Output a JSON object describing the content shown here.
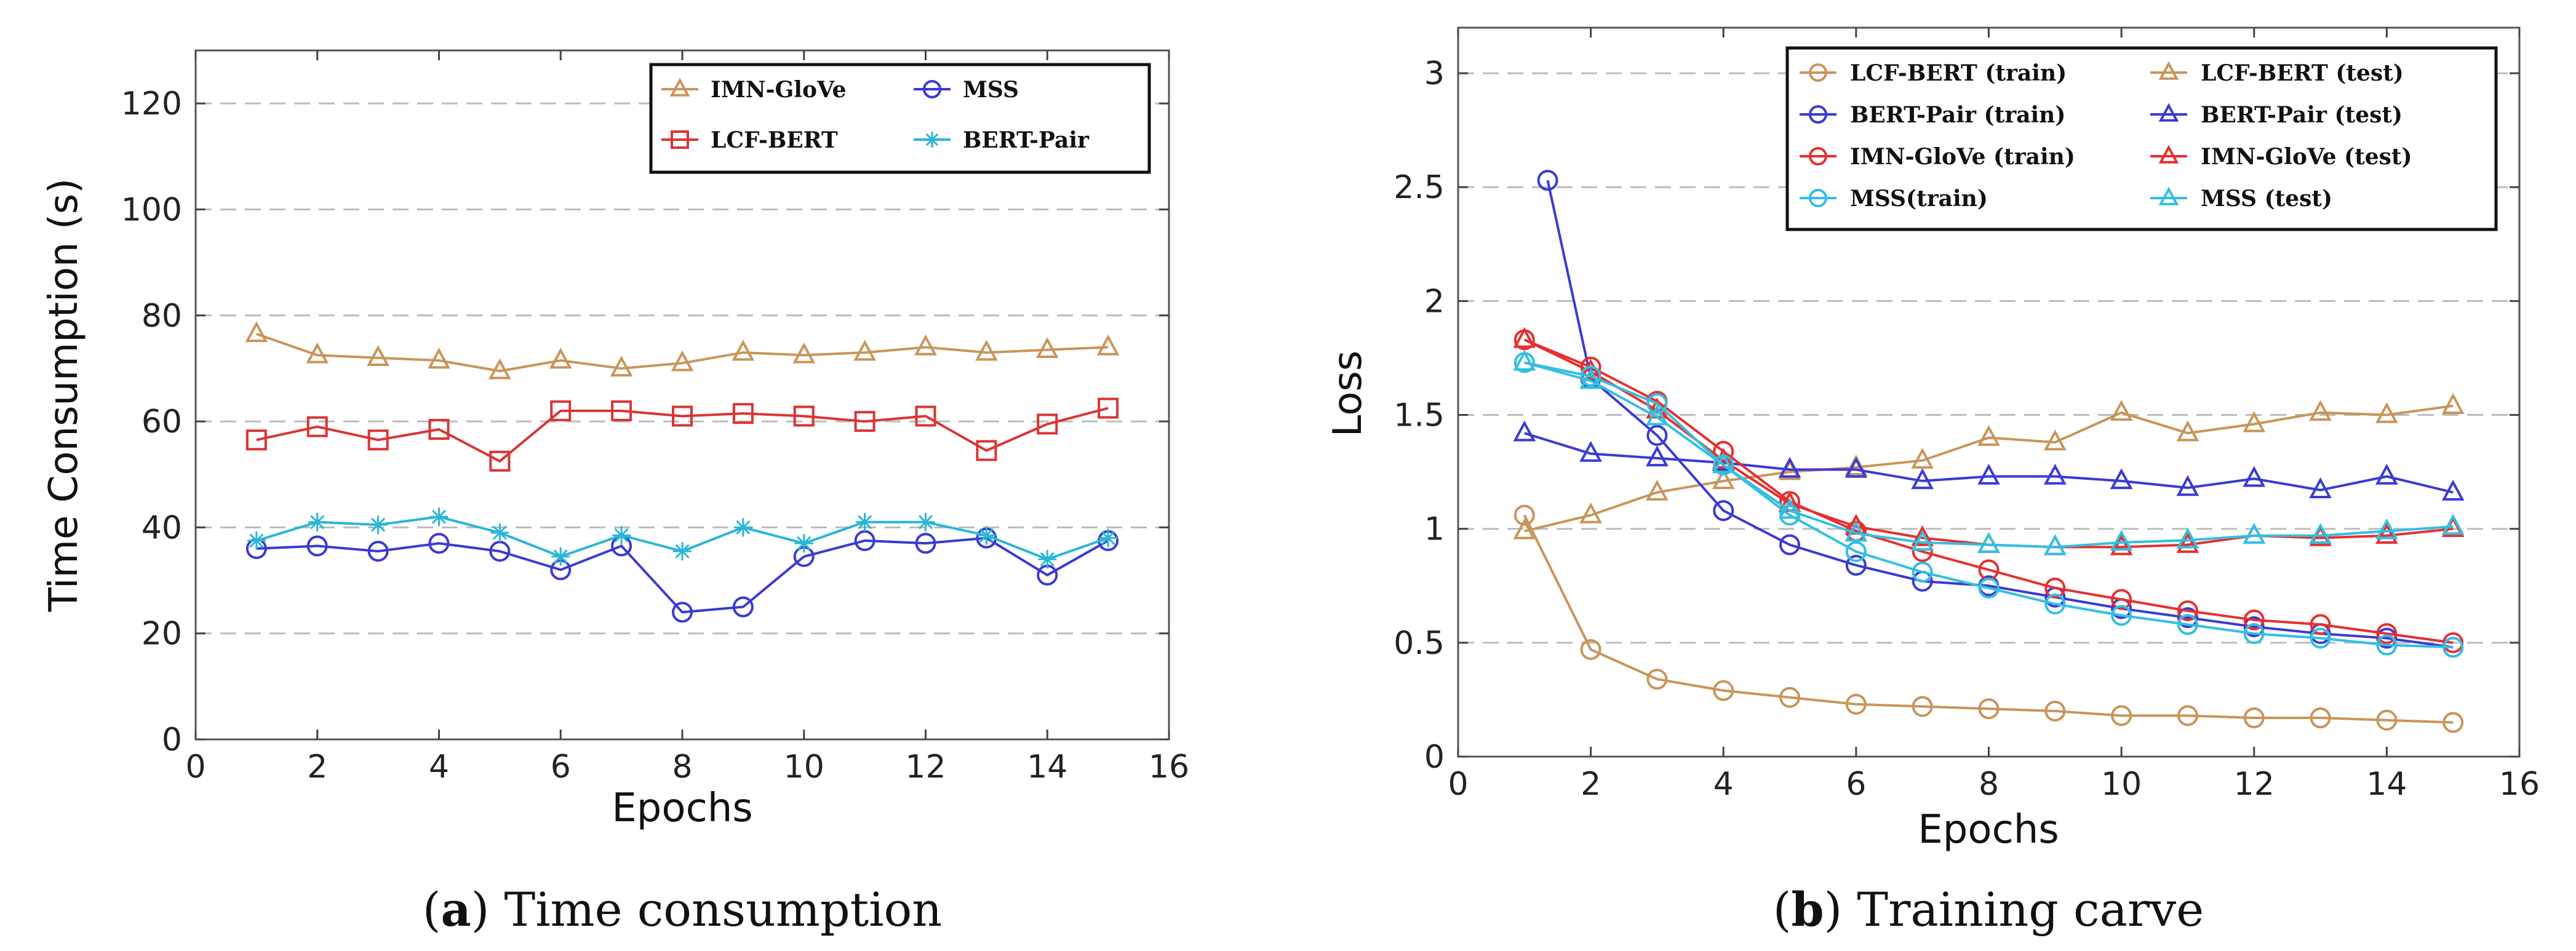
{
  "colors": {
    "IMN-GloVe": "#c8955a",
    "LCF-BERT": "#d93535",
    "LCF-BERT-train": "#c8955a",
    "MSS": "#3a3ad4",
    "BERT-Pair": "#2ab6d6",
    "BERT-Pair-train": "#3a3ad4",
    "IMN-GloVe-train": "#e53030",
    "MSS-train": "#33bfe0"
  },
  "chart_data": [
    {
      "type": "line",
      "caption_letter": "a",
      "caption_text": " Time consumption",
      "caption_open": "(",
      "caption_close": ")",
      "xlabel": "Epochs",
      "ylabel": "Time Consumption (s)",
      "xlim": [
        0,
        16
      ],
      "ylim": [
        0,
        130
      ],
      "xticks": [
        0,
        2,
        4,
        6,
        8,
        10,
        12,
        14,
        16
      ],
      "yticks": [
        0,
        20,
        40,
        60,
        80,
        100,
        120
      ],
      "grid": true,
      "legend_position": "top-right",
      "series": [
        {
          "name": "IMN-GloVe",
          "marker": "triangle",
          "color_key": "IMN-GloVe",
          "x": [
            1,
            2,
            3,
            4,
            5,
            6,
            7,
            8,
            9,
            10,
            11,
            12,
            13,
            14,
            15
          ],
          "y": [
            76.5,
            72.5,
            72,
            71.5,
            69.5,
            71.5,
            70,
            71,
            73,
            72.5,
            73,
            74,
            73,
            73.5,
            74
          ]
        },
        {
          "name": "MSS",
          "marker": "circle",
          "color_key": "MSS",
          "x": [
            1,
            2,
            3,
            4,
            5,
            6,
            7,
            8,
            9,
            10,
            11,
            12,
            13,
            14,
            15
          ],
          "y": [
            36,
            36.5,
            35.5,
            37,
            35.5,
            32,
            36.5,
            24,
            25,
            34.5,
            37.5,
            37,
            38,
            31,
            37.5
          ]
        },
        {
          "name": "LCF-BERT",
          "marker": "square",
          "color_key": "LCF-BERT",
          "x": [
            1,
            2,
            3,
            4,
            5,
            6,
            7,
            8,
            9,
            10,
            11,
            12,
            13,
            14,
            15
          ],
          "y": [
            56.5,
            59,
            56.5,
            58.5,
            52.5,
            62,
            62,
            61,
            61.5,
            61,
            60,
            61,
            54.5,
            59.5,
            62.5
          ]
        },
        {
          "name": "BERT-Pair",
          "marker": "star",
          "color_key": "BERT-Pair",
          "x": [
            1,
            2,
            3,
            4,
            5,
            6,
            7,
            8,
            9,
            10,
            11,
            12,
            13,
            14,
            15
          ],
          "y": [
            37.5,
            41,
            40.5,
            42,
            39,
            34.5,
            38.5,
            35.5,
            40,
            37,
            41,
            41,
            38.5,
            34,
            38
          ]
        }
      ]
    },
    {
      "type": "line",
      "caption_letter": "b",
      "caption_text": " Training carve",
      "caption_open": "(",
      "caption_close": ")",
      "xlabel": "Epochs",
      "ylabel": "Loss",
      "xlim": [
        0,
        16
      ],
      "ylim": [
        0,
        3.2
      ],
      "xticks": [
        0,
        2,
        4,
        6,
        8,
        10,
        12,
        14,
        16
      ],
      "yticks": [
        0,
        0.5,
        1,
        1.5,
        2,
        2.5,
        3
      ],
      "ytick_labels": [
        "0",
        "0.5",
        "1",
        "1.5",
        "2",
        "2.5",
        "3"
      ],
      "grid": true,
      "legend_position": "top-right",
      "series": [
        {
          "name": "LCF-BERT (train)",
          "marker": "circle",
          "color_key": "LCF-BERT-train",
          "x": [
            1,
            2,
            3,
            4,
            5,
            6,
            7,
            8,
            9,
            10,
            11,
            12,
            13,
            14,
            15
          ],
          "y": [
            1.06,
            0.47,
            0.34,
            0.29,
            0.26,
            0.23,
            0.22,
            0.21,
            0.2,
            0.18,
            0.18,
            0.17,
            0.17,
            0.16,
            0.15
          ]
        },
        {
          "name": "LCF-BERT (test)",
          "marker": "triangle",
          "color_key": "LCF-BERT-train",
          "x": [
            1,
            2,
            3,
            4,
            5,
            6,
            7,
            8,
            9,
            10,
            11,
            12,
            13,
            14,
            15
          ],
          "y": [
            0.99,
            1.06,
            1.16,
            1.21,
            1.25,
            1.27,
            1.3,
            1.4,
            1.38,
            1.51,
            1.42,
            1.46,
            1.51,
            1.5,
            1.54
          ]
        },
        {
          "name": "BERT-Pair (train)",
          "marker": "circle",
          "color_key": "BERT-Pair-train",
          "x": [
            1.35,
            2,
            3,
            4,
            5,
            6,
            7,
            8,
            9,
            10,
            11,
            12,
            13,
            14,
            15
          ],
          "y": [
            2.53,
            1.66,
            1.41,
            1.08,
            0.93,
            0.84,
            0.77,
            0.75,
            0.7,
            0.65,
            0.61,
            0.57,
            0.54,
            0.52,
            0.48
          ]
        },
        {
          "name": "BERT-Pair (test)",
          "marker": "triangle",
          "color_key": "BERT-Pair-train",
          "x": [
            1,
            2,
            3,
            4,
            5,
            6,
            7,
            8,
            9,
            10,
            11,
            12,
            13,
            14,
            15
          ],
          "y": [
            1.42,
            1.33,
            1.31,
            1.29,
            1.26,
            1.26,
            1.21,
            1.23,
            1.23,
            1.21,
            1.18,
            1.22,
            1.17,
            1.23,
            1.16
          ]
        },
        {
          "name": "IMN-GloVe (train)",
          "marker": "circle",
          "color_key": "IMN-GloVe-train",
          "x": [
            1,
            2,
            3,
            4,
            5,
            6,
            7,
            8,
            9,
            10,
            11,
            12,
            13,
            14,
            15
          ],
          "y": [
            1.83,
            1.71,
            1.56,
            1.34,
            1.12,
            0.99,
            0.9,
            0.82,
            0.74,
            0.69,
            0.64,
            0.6,
            0.58,
            0.54,
            0.5
          ]
        },
        {
          "name": "IMN-GloVe (test)",
          "marker": "triangle",
          "color_key": "IMN-GloVe-train",
          "x": [
            1,
            2,
            3,
            4,
            5,
            6,
            7,
            8,
            9,
            10,
            11,
            12,
            13,
            14,
            15
          ],
          "y": [
            1.83,
            1.69,
            1.52,
            1.3,
            1.11,
            1.01,
            0.96,
            0.93,
            0.92,
            0.92,
            0.93,
            0.97,
            0.96,
            0.97,
            1.0
          ]
        },
        {
          "name": "MSS(train)",
          "marker": "circle",
          "color_key": "MSS-train",
          "x": [
            1,
            2,
            3,
            4,
            5,
            6,
            7,
            8,
            9,
            10,
            11,
            12,
            13,
            14,
            15
          ],
          "y": [
            1.73,
            1.67,
            1.55,
            1.28,
            1.06,
            0.9,
            0.81,
            0.74,
            0.67,
            0.62,
            0.58,
            0.54,
            0.52,
            0.49,
            0.48
          ]
        },
        {
          "name": "MSS (test)",
          "marker": "triangle",
          "color_key": "MSS-train",
          "x": [
            1,
            2,
            3,
            4,
            5,
            6,
            7,
            8,
            9,
            10,
            11,
            12,
            13,
            14,
            15
          ],
          "y": [
            1.73,
            1.65,
            1.49,
            1.28,
            1.08,
            0.98,
            0.94,
            0.93,
            0.92,
            0.94,
            0.95,
            0.97,
            0.97,
            0.99,
            1.01
          ]
        }
      ]
    }
  ]
}
